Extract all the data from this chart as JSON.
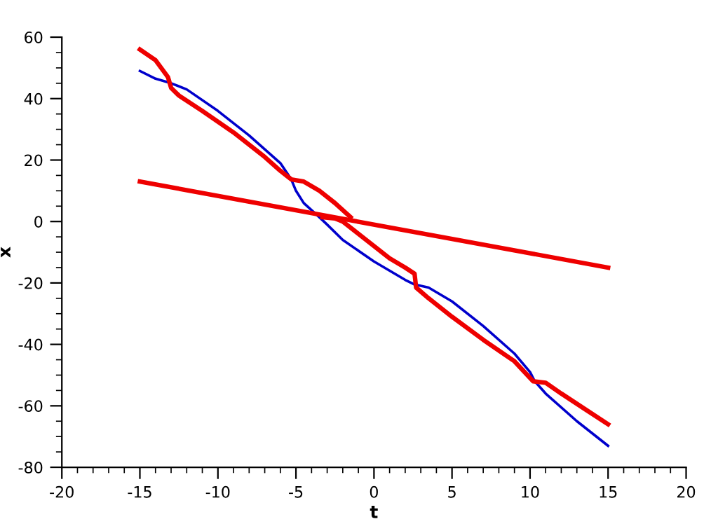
{
  "chart_data": {
    "type": "line",
    "xlabel": "t",
    "ylabel": "x",
    "xlim": [
      -20,
      20
    ],
    "xticks": [
      -20,
      -15,
      -10,
      -5,
      0,
      5,
      10,
      15,
      20
    ],
    "ylim": [
      -80,
      60
    ],
    "yticks": [
      -80,
      -60,
      -40,
      -20,
      0,
      20,
      40,
      60
    ],
    "grid": false,
    "legend": false,
    "marker": "none",
    "line_style": "solid",
    "series": [
      {
        "color": "#0000cc",
        "x": [
          -15,
          -14,
          -13,
          -12,
          -10,
          -8,
          -6,
          -5.3,
          -5,
          -4.5,
          -3.5,
          -3,
          -2,
          0,
          2,
          2.6,
          3.5,
          5,
          7,
          9,
          10,
          10.3,
          11,
          13,
          15
        ],
        "values": [
          49,
          46.5,
          45,
          43,
          36,
          28,
          19,
          13.7,
          10,
          6,
          1.4,
          -1,
          -6,
          -13,
          -19,
          -20.5,
          -21.5,
          -26,
          -34,
          -43,
          -49,
          -52,
          -56,
          -65,
          -73
        ]
      },
      {
        "color": "#ee0000",
        "x": [
          -15,
          -14,
          -13.2,
          -13,
          -12.5,
          -11,
          -9,
          -7,
          -6,
          -5.3,
          -4.5,
          -3.5,
          -2.5,
          -1.5
        ],
        "values": [
          56,
          52.5,
          47,
          43.5,
          41,
          36,
          29,
          21,
          16.5,
          13.7,
          13,
          10,
          6,
          1.4
        ]
      },
      {
        "color": "#ee0000",
        "x": [
          -3.3,
          -2.5,
          -2,
          -1,
          0,
          1,
          2,
          2.6,
          2.7,
          3.5,
          5,
          7,
          9,
          10.2,
          11,
          12,
          13.5,
          15
        ],
        "values": [
          1.4,
          1,
          0,
          -4,
          -8,
          -12,
          -15,
          -17,
          -21.5,
          -25,
          -31,
          -38.5,
          -45.5,
          -52,
          -52.5,
          -56,
          -61,
          -66
        ]
      },
      {
        "color": "#ee0000",
        "x": [
          -15,
          15
        ],
        "values": [
          13,
          -15
        ]
      }
    ]
  }
}
